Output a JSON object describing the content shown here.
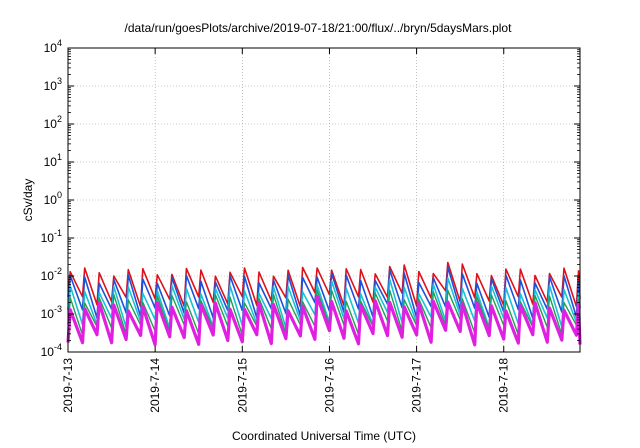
{
  "chart_data": {
    "type": "line",
    "title": "/data/run/goesPlots/archive/2019-07-18/21:00/flux/../bryn/5daysMars.plot",
    "xlabel": "Coordinated Universal Time (UTC)",
    "ylabel": "cSv/day",
    "yscale": "log",
    "ylim": [
      0.0001,
      10000
    ],
    "y_ticks": [
      {
        "value": 0.0001,
        "base": "10",
        "exp": "-4"
      },
      {
        "value": 0.001,
        "base": "10",
        "exp": "-3"
      },
      {
        "value": 0.01,
        "base": "10",
        "exp": "-2"
      },
      {
        "value": 0.1,
        "base": "10",
        "exp": "-1"
      },
      {
        "value": 1,
        "base": "10",
        "exp": "0"
      },
      {
        "value": 10,
        "base": "10",
        "exp": "1"
      },
      {
        "value": 100,
        "base": "10",
        "exp": "2"
      },
      {
        "value": 1000,
        "base": "10",
        "exp": "3"
      },
      {
        "value": 10000,
        "base": "10",
        "exp": "4"
      }
    ],
    "xlim": [
      "2019-07-13T00:00",
      "2019-07-18T21:00"
    ],
    "x_ticks": [
      "2019-7-13",
      "2019-7-14",
      "2019-7-15",
      "2019-7-16",
      "2019-7-17",
      "2019-7-18"
    ],
    "grid": true,
    "cycle_period_hours": 4,
    "series": [
      {
        "color": "#e0101a",
        "peak": 0.013,
        "trough": 0.0022,
        "width": 1.6
      },
      {
        "color": "#2050d8",
        "peak": 0.0085,
        "trough": 0.0011,
        "width": 1.6
      },
      {
        "color": "#18c0d8",
        "peak": 0.0045,
        "trough": 0.0006,
        "width": 1.6
      },
      {
        "color": "#20a050",
        "peak": 0.0026,
        "trough": 0.0004,
        "width": 1.4
      },
      {
        "color": "#e020e0",
        "peak": 0.0016,
        "trough": 0.00022,
        "width": 3.2
      }
    ],
    "events": [
      {
        "x": "2019-07-15T22:00",
        "factor": 1.6
      },
      {
        "x": "2019-07-16T17:00",
        "factor": 1.5
      },
      {
        "x": "2019-07-17T09:00",
        "factor": 1.7
      }
    ]
  }
}
